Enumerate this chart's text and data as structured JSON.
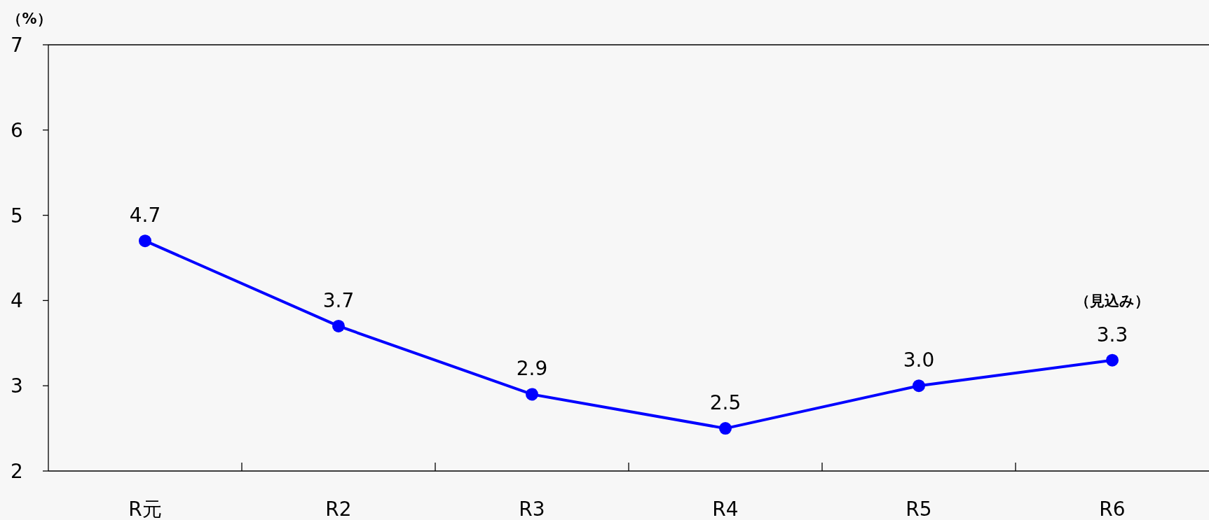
{
  "chart_data": {
    "type": "line",
    "ylabel": "（%）",
    "categories": [
      "R元",
      "R2",
      "R3",
      "R4",
      "R5",
      "R6"
    ],
    "values": [
      4.7,
      3.7,
      2.9,
      2.5,
      3.0,
      3.3
    ],
    "value_labels": [
      "4.7",
      "3.7",
      "2.9",
      "2.5",
      "3.0",
      "3.3"
    ],
    "color": "#0000ff",
    "marker": "circle",
    "ylim": [
      2,
      7
    ],
    "yticks": [
      2,
      3,
      4,
      5,
      6,
      7
    ],
    "annotations": [
      "（見込み）"
    ]
  }
}
